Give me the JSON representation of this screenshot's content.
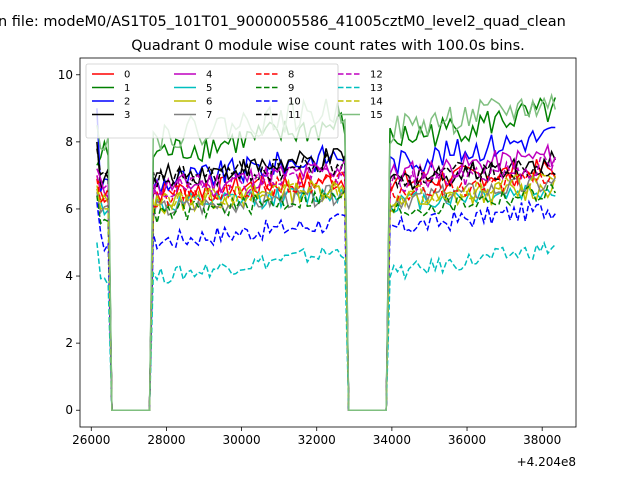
{
  "chart_data": {
    "type": "line",
    "suptitle": "n file: modeM0/AS1T05_101T01_9000005586_41005cztM0_level2_quad_clean",
    "title": "Quadrant 0 module wise count rates with 100.0s bins.",
    "xlabel": "",
    "ylabel": "",
    "x_offset_label": "+4.204e8",
    "xlim": [
      25700,
      38900
    ],
    "ylim": [
      -0.5,
      10.5
    ],
    "x_ticks": [
      26000,
      28000,
      30000,
      32000,
      34000,
      36000,
      38000
    ],
    "x_tick_labels": [
      "26000",
      "28000",
      "30000",
      "32000",
      "34000",
      "36000",
      "38000"
    ],
    "y_ticks": [
      0,
      2,
      4,
      6,
      8,
      10
    ],
    "y_tick_labels": [
      "0",
      "2",
      "4",
      "6",
      "8",
      "10"
    ],
    "grid": false,
    "legend_placement": "top-left",
    "legend_columns": 4,
    "x_start": 26150,
    "x_end": 38350,
    "bin_width": 100,
    "gaps": [
      [
        26500,
        27600
      ],
      [
        32800,
        33900
      ]
    ],
    "series": [
      {
        "name": "0",
        "color": "#ff0000",
        "dash": "solid",
        "level1": 6.6,
        "level2": 6.9,
        "trend": 0.4,
        "noise": 0.35,
        "startv": 7.0
      },
      {
        "name": "1",
        "color": "#008000",
        "dash": "solid",
        "level1": 7.9,
        "level2": 8.3,
        "trend": 0.9,
        "noise": 0.45,
        "startv": 7.3
      },
      {
        "name": "2",
        "color": "#0000ff",
        "dash": "solid",
        "level1": 7.0,
        "level2": 7.6,
        "trend": 0.9,
        "noise": 0.4,
        "startv": 9.0
      },
      {
        "name": "3",
        "color": "#000000",
        "dash": "solid",
        "level1": 7.1,
        "level2": 7.0,
        "trend": 0.6,
        "noise": 0.35,
        "startv": 8.0
      },
      {
        "name": "4",
        "color": "#bf00bf",
        "dash": "solid",
        "level1": 6.8,
        "level2": 7.2,
        "trend": 0.6,
        "noise": 0.35,
        "startv": 7.2
      },
      {
        "name": "5",
        "color": "#00bfbf",
        "dash": "solid",
        "level1": 6.2,
        "level2": 6.3,
        "trend": 0.4,
        "noise": 0.3,
        "startv": 6.6
      },
      {
        "name": "6",
        "color": "#bfbf00",
        "dash": "solid",
        "level1": 6.3,
        "level2": 6.3,
        "trend": 0.5,
        "noise": 0.35,
        "startv": 6.7
      },
      {
        "name": "7",
        "color": "#808080",
        "dash": "solid",
        "level1": 6.1,
        "level2": 6.4,
        "trend": 0.5,
        "noise": 0.3,
        "startv": 6.5
      },
      {
        "name": "8",
        "color": "#ff0000",
        "dash": "dashed",
        "level1": 6.5,
        "level2": 6.6,
        "trend": 0.5,
        "noise": 0.3,
        "startv": 6.9
      },
      {
        "name": "9",
        "color": "#008000",
        "dash": "dashed",
        "level1": 6.0,
        "level2": 6.1,
        "trend": 0.6,
        "noise": 0.3,
        "startv": 6.4
      },
      {
        "name": "10",
        "color": "#0000ff",
        "dash": "dashed",
        "level1": 5.2,
        "level2": 5.6,
        "trend": 0.6,
        "noise": 0.3,
        "startv": 6.2
      },
      {
        "name": "11",
        "color": "#000000",
        "dash": "dashed",
        "level1": 7.0,
        "level2": 7.0,
        "trend": 0.5,
        "noise": 0.35,
        "startv": 7.8
      },
      {
        "name": "12",
        "color": "#bf00bf",
        "dash": "dashed",
        "level1": 6.7,
        "level2": 6.9,
        "trend": 0.6,
        "noise": 0.35,
        "startv": 7.0
      },
      {
        "name": "13",
        "color": "#00bfbf",
        "dash": "dashed",
        "level1": 4.2,
        "level2": 4.3,
        "trend": 0.8,
        "noise": 0.25,
        "startv": 5.0
      },
      {
        "name": "14",
        "color": "#bfbf00",
        "dash": "dashed",
        "level1": 6.3,
        "level2": 6.5,
        "trend": 0.5,
        "noise": 0.3,
        "startv": 6.6
      },
      {
        "name": "15",
        "color": "#7fbf7f",
        "dash": "solid",
        "level1": 8.4,
        "level2": 8.6,
        "trend": 0.8,
        "noise": 0.45,
        "startv": 8.5
      }
    ]
  }
}
